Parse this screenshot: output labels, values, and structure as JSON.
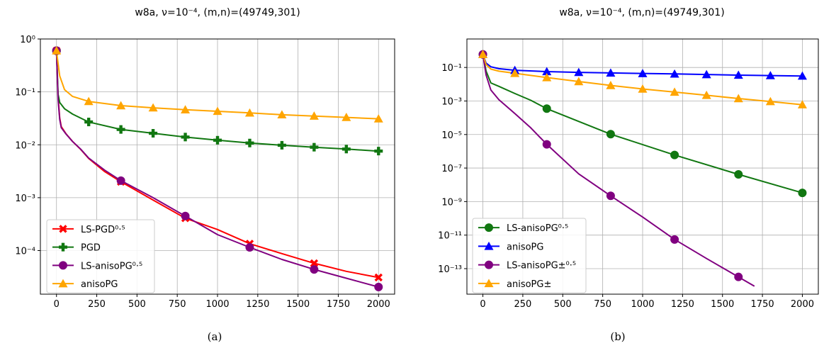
{
  "chart_data": [
    {
      "type": "line",
      "title": "w8a, ν=10⁻⁴, (m,n)=(49749,301)",
      "caption": "(a)",
      "xlim": [
        -100,
        2100
      ],
      "ylim": [
        1.5e-05,
        1.0
      ],
      "yscale": "log",
      "grid": true,
      "legend_position": "lower-left",
      "xticks": [
        0,
        250,
        500,
        750,
        1000,
        1250,
        1500,
        1750,
        2000
      ],
      "yticks": [
        {
          "v": 1,
          "label": "10⁰"
        },
        {
          "v": 0.1,
          "label": "10⁻¹"
        },
        {
          "v": 0.01,
          "label": "10⁻²"
        },
        {
          "v": 0.001,
          "label": "10⁻³"
        },
        {
          "v": 0.0001,
          "label": "10⁻⁴"
        }
      ],
      "series": [
        {
          "name": "LS-PGD⁰·⁵",
          "color": "#ff0000",
          "marker": "x",
          "x": [
            0,
            10,
            20,
            30,
            60,
            100,
            150,
            200,
            300,
            400,
            600,
            800,
            1000,
            1200,
            1400,
            1600,
            1800,
            2000
          ],
          "y": [
            0.6,
            0.08,
            0.032,
            0.022,
            0.016,
            0.0115,
            0.0082,
            0.0055,
            0.0031,
            0.002,
            0.0009,
            0.00041,
            0.00025,
            0.000135,
            8.75e-05,
            5.75e-05,
            4.05e-05,
            3.1e-05
          ],
          "marker_x": [
            0,
            400,
            800,
            1200,
            1600,
            2000
          ],
          "marker_y": [
            0.6,
            0.002,
            0.00041,
            0.000135,
            5.75e-05,
            3.1e-05
          ]
        },
        {
          "name": "PGD",
          "color": "#117711",
          "marker": "plus",
          "x": [
            0,
            10,
            20,
            50,
            100,
            200,
            400,
            600,
            800,
            1000,
            1200,
            1400,
            1600,
            1800,
            2000
          ],
          "y": [
            0.6,
            0.09,
            0.063,
            0.048,
            0.038,
            0.027,
            0.0195,
            0.0165,
            0.014,
            0.0122,
            0.0108,
            0.0098,
            0.009,
            0.0083,
            0.0076
          ],
          "marker_x": [
            0,
            200,
            400,
            600,
            800,
            1000,
            1200,
            1400,
            1600,
            1800,
            2000
          ],
          "marker_y": [
            0.6,
            0.027,
            0.0195,
            0.0165,
            0.014,
            0.0122,
            0.0108,
            0.0098,
            0.009,
            0.0083,
            0.0076
          ]
        },
        {
          "name": "LS-anisoPG⁰·⁵",
          "color": "#800080",
          "marker": "circle",
          "x": [
            0,
            10,
            20,
            30,
            60,
            100,
            150,
            200,
            300,
            400,
            600,
            800,
            1000,
            1200,
            1400,
            1600,
            1800,
            2000
          ],
          "y": [
            0.6,
            0.07,
            0.03,
            0.021,
            0.0158,
            0.0115,
            0.0083,
            0.0056,
            0.0033,
            0.0021,
            0.001,
            0.00045,
            0.0002,
            0.000115,
            6.8e-05,
            4.4e-05,
            3e-05,
            2.05e-05
          ],
          "marker_x": [
            0,
            400,
            800,
            1200,
            1600,
            2000
          ],
          "marker_y": [
            0.6,
            0.0021,
            0.00045,
            0.000115,
            4.4e-05,
            2.05e-05
          ]
        },
        {
          "name": "anisoPG",
          "color": "#ffa500",
          "marker": "triangle",
          "x": [
            0,
            20,
            50,
            100,
            200,
            400,
            600,
            800,
            1000,
            1200,
            1400,
            1600,
            1800,
            2000
          ],
          "y": [
            0.6,
            0.2,
            0.11,
            0.082,
            0.066,
            0.055,
            0.05,
            0.046,
            0.043,
            0.04,
            0.037,
            0.035,
            0.033,
            0.031
          ],
          "marker_x": [
            0,
            200,
            400,
            600,
            800,
            1000,
            1200,
            1400,
            1600,
            1800,
            2000
          ],
          "marker_y": [
            0.6,
            0.066,
            0.055,
            0.05,
            0.046,
            0.043,
            0.04,
            0.037,
            0.035,
            0.033,
            0.031
          ]
        }
      ]
    },
    {
      "type": "line",
      "title": "w8a, ν=10⁻⁴, (m,n)=(49749,301)",
      "caption": "(b)",
      "xlim": [
        -100,
        2100
      ],
      "ylim": [
        3e-15,
        5.0
      ],
      "yscale": "log",
      "grid": true,
      "legend_position": "lower-left",
      "xticks": [
        0,
        250,
        500,
        750,
        1000,
        1250,
        1500,
        1750,
        2000
      ],
      "yticks": [
        {
          "v": 0.1,
          "label": "10⁻¹"
        },
        {
          "v": 0.001,
          "label": "10⁻³"
        },
        {
          "v": 1e-05,
          "label": "10⁻⁵"
        },
        {
          "v": 1e-07,
          "label": "10⁻⁷"
        },
        {
          "v": 1e-09,
          "label": "10⁻⁹"
        },
        {
          "v": 1e-11,
          "label": "10⁻¹¹"
        },
        {
          "v": 1e-13,
          "label": "10⁻¹³"
        }
      ],
      "series": [
        {
          "name": "LS-anisoPG⁰·⁵",
          "color": "#117711",
          "marker": "circle",
          "x": [
            0,
            20,
            50,
            100,
            200,
            300,
            400,
            800,
            1200,
            1600,
            2000
          ],
          "y": [
            0.6,
            0.06,
            0.012,
            0.0075,
            0.0028,
            0.0011,
            0.00035,
            1.05e-05,
            6e-07,
            4.2e-08,
            3.3e-09
          ],
          "marker_x": [
            0,
            400,
            800,
            1200,
            1600,
            2000
          ],
          "marker_y": [
            0.6,
            0.00035,
            1.05e-05,
            6e-07,
            4.2e-08,
            3.3e-09
          ]
        },
        {
          "name": "anisoPG",
          "color": "#0000ff",
          "marker": "triangle",
          "x": [
            0,
            20,
            50,
            100,
            200,
            400,
            600,
            800,
            1000,
            1200,
            1400,
            1600,
            1800,
            2000
          ],
          "y": [
            0.6,
            0.18,
            0.11,
            0.085,
            0.068,
            0.057,
            0.051,
            0.047,
            0.044,
            0.041,
            0.038,
            0.035,
            0.033,
            0.031
          ],
          "marker_x": [
            0,
            200,
            400,
            600,
            800,
            1000,
            1200,
            1400,
            1600,
            1800,
            2000
          ],
          "marker_y": [
            0.6,
            0.068,
            0.057,
            0.051,
            0.047,
            0.044,
            0.041,
            0.038,
            0.035,
            0.033,
            0.031
          ]
        },
        {
          "name": "LS-anisoPG±⁰·⁵",
          "color": "#800080",
          "marker": "circle",
          "x": [
            0,
            20,
            50,
            100,
            200,
            300,
            400,
            600,
            800,
            1000,
            1200,
            1400,
            1600,
            1700
          ],
          "y": [
            0.6,
            0.035,
            0.0045,
            0.0012,
            0.00018,
            2.5e-05,
            2.6e-06,
            4.5e-08,
            2.2e-09,
            1.2e-10,
            5.5e-12,
            4e-13,
            3.2e-14,
            9e-15
          ],
          "marker_x": [
            0,
            400,
            800,
            1200,
            1600
          ],
          "marker_y": [
            0.6,
            2.6e-06,
            2.2e-09,
            5.5e-12,
            3.2e-14
          ]
        },
        {
          "name": "anisoPG±",
          "color": "#ffa500",
          "marker": "triangle",
          "x": [
            0,
            20,
            50,
            100,
            200,
            400,
            600,
            800,
            1000,
            1200,
            1400,
            1600,
            1800,
            2000
          ],
          "y": [
            0.6,
            0.15,
            0.08,
            0.06,
            0.045,
            0.025,
            0.0145,
            0.0085,
            0.0052,
            0.0034,
            0.0022,
            0.0014,
            0.00093,
            0.0006
          ],
          "marker_x": [
            0,
            200,
            400,
            600,
            800,
            1000,
            1200,
            1400,
            1600,
            1800,
            2000
          ],
          "marker_y": [
            0.6,
            0.045,
            0.025,
            0.0145,
            0.0085,
            0.0052,
            0.0034,
            0.0022,
            0.0014,
            0.00093,
            0.0006
          ]
        }
      ]
    }
  ]
}
